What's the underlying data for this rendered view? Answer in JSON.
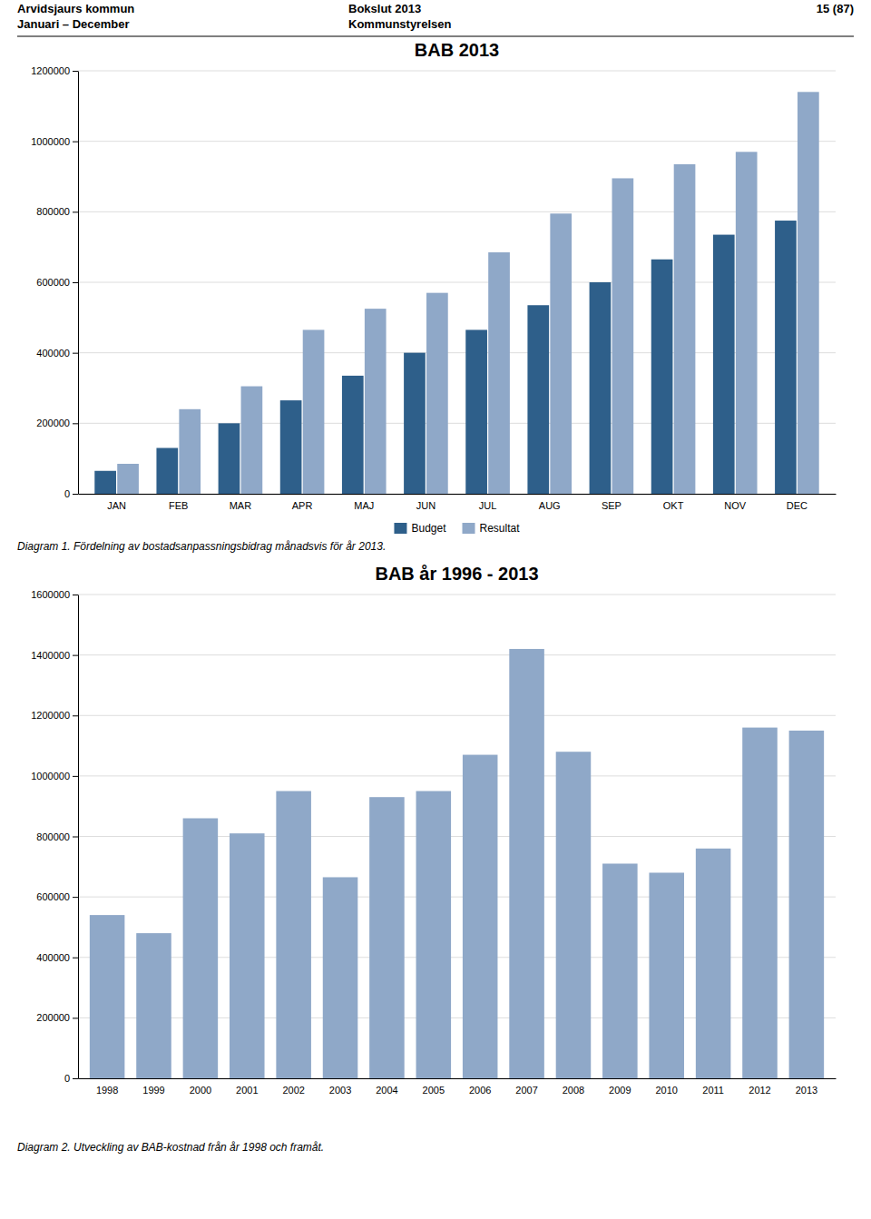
{
  "chart_data": [
    {
      "type": "bar",
      "title": "BAB 2013",
      "annotations": [
        "Arvidsjaurs kommun",
        "Januari – December",
        "Bokslut 2013",
        "Kommunstyrelsen",
        "15 (87)",
        "Diagram 1. Fördelning av bostadsanpassningsbidrag månadsvis för år 2013."
      ],
      "categories": [
        "JAN",
        "FEB",
        "MAR",
        "APR",
        "MAJ",
        "JUN",
        "JUL",
        "AUG",
        "SEP",
        "OKT",
        "NOV",
        "DEC"
      ],
      "series": [
        {
          "name": "Budget",
          "color": "#2E5F8A",
          "values": [
            65000,
            130000,
            200000,
            265000,
            335000,
            400000,
            465000,
            535000,
            600000,
            665000,
            735000,
            775000
          ]
        },
        {
          "name": "Resultat",
          "color": "#8FA8C8",
          "values": [
            85000,
            240000,
            305000,
            465000,
            525000,
            570000,
            685000,
            795000,
            895000,
            935000,
            970000,
            1140000
          ]
        }
      ],
      "ylim": [
        0,
        1200000
      ],
      "yticks": [
        0,
        200000,
        400000,
        600000,
        800000,
        1000000,
        1200000
      ],
      "grid": true,
      "legend": "bottom"
    },
    {
      "type": "bar",
      "title": "BAB år 1996 - 2013",
      "annotations": [
        "Diagram 2. Utveckling av BAB-kostnad från år 1998 och framåt."
      ],
      "categories": [
        "1998",
        "1999",
        "2000",
        "2001",
        "2002",
        "2003",
        "2004",
        "2005",
        "2006",
        "2007",
        "2008",
        "2009",
        "2010",
        "2011",
        "2012",
        "2013"
      ],
      "values": [
        540000,
        480000,
        860000,
        810000,
        950000,
        665000,
        930000,
        950000,
        1070000,
        1420000,
        1080000,
        710000,
        680000,
        760000,
        1160000,
        1150000
      ],
      "color": "#8FA8C8",
      "ylim": [
        0,
        1600000
      ],
      "yticks": [
        0,
        200000,
        400000,
        600000,
        800000,
        1000000,
        1200000,
        1400000,
        1600000
      ],
      "grid": true
    }
  ]
}
